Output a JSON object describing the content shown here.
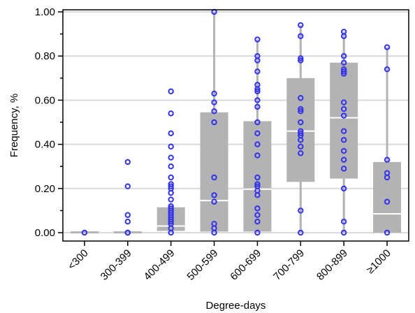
{
  "chart_data": {
    "type": "box",
    "xlabel": "Degree-days",
    "ylabel": "Frequency, %",
    "ylim": [
      0,
      1.0
    ],
    "yticks": [
      "0.00",
      "0.20",
      "0.40",
      "0.60",
      "0.80",
      "1.00"
    ],
    "grid": "horizontal",
    "colors": {
      "box": "#b3b3b3",
      "point": "#3333ee",
      "median": "#ffffff",
      "grid": "#d9d9d9"
    },
    "categories": [
      "<300",
      "300-399",
      "400-499",
      "500-599",
      "600-699",
      "700-799",
      "800-899",
      "≥1000"
    ],
    "boxes": [
      {
        "min": 0.0,
        "q1": 0.0,
        "median": 0.0,
        "q3": 0.006,
        "max": 0.006
      },
      {
        "min": 0.0,
        "q1": 0.0,
        "median": 0.0,
        "q3": 0.006,
        "max": 0.006
      },
      {
        "min": 0.0,
        "q1": 0.008,
        "median": 0.03,
        "q3": 0.115,
        "max": 0.115
      },
      {
        "min": 0.0,
        "q1": 0.005,
        "median": 0.145,
        "q3": 0.545,
        "max": 1.0
      },
      {
        "min": 0.0,
        "q1": 0.005,
        "median": 0.197,
        "q3": 0.505,
        "max": 0.875
      },
      {
        "min": 0.0,
        "q1": 0.23,
        "median": 0.46,
        "q3": 0.7,
        "max": 0.94
      },
      {
        "min": 0.0,
        "q1": 0.245,
        "median": 0.52,
        "q3": 0.77,
        "max": 0.91
      },
      {
        "min": 0.0,
        "q1": 0.0,
        "median": 0.085,
        "q3": 0.32,
        "max": 0.84
      }
    ],
    "points": [
      [
        0.0
      ],
      [
        0.0,
        0.0,
        0.05,
        0.08,
        0.21,
        0.32
      ],
      [
        0.0,
        0.02,
        0.04,
        0.05,
        0.06,
        0.07,
        0.08,
        0.09,
        0.1,
        0.11,
        0.12,
        0.15,
        0.18,
        0.2,
        0.21,
        0.22,
        0.25,
        0.3,
        0.34,
        0.39,
        0.45,
        0.54,
        0.64
      ],
      [
        0.0,
        0.02,
        0.04,
        0.14,
        0.17,
        0.25,
        0.5,
        0.55,
        0.59,
        0.63,
        1.0
      ],
      [
        0.0,
        0.05,
        0.08,
        0.11,
        0.17,
        0.19,
        0.21,
        0.22,
        0.25,
        0.35,
        0.4,
        0.45,
        0.5,
        0.57,
        0.6,
        0.64,
        0.65,
        0.67,
        0.73,
        0.78,
        0.8,
        0.875
      ],
      [
        0.0,
        0.1,
        0.36,
        0.39,
        0.42,
        0.44,
        0.45,
        0.46,
        0.5,
        0.55,
        0.56,
        0.61,
        0.78,
        0.79,
        0.89,
        0.94
      ],
      [
        0.0,
        0.05,
        0.2,
        0.29,
        0.33,
        0.37,
        0.42,
        0.46,
        0.53,
        0.56,
        0.59,
        0.72,
        0.73,
        0.74,
        0.77,
        0.8,
        0.89,
        0.91
      ],
      [
        0.0,
        0.14,
        0.25,
        0.27,
        0.33,
        0.74,
        0.84
      ]
    ]
  }
}
